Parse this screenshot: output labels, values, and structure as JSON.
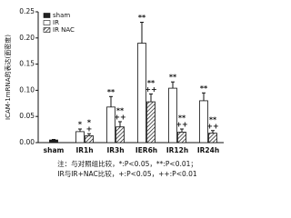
{
  "chart_data": {
    "type": "bar",
    "y_label": "ICAM-1mRNA的表达(面密度)",
    "categories": [
      "sham",
      "IR1h",
      "IR3h",
      "IER6h",
      "IR12h",
      "IR24h"
    ],
    "series": [
      {
        "name": "sham",
        "color": "#222222",
        "values": [
          0.005,
          null,
          null,
          null,
          null,
          null
        ],
        "errors": [
          0.001,
          null,
          null,
          null,
          null,
          null
        ],
        "sig": [
          null,
          null,
          null,
          null,
          null,
          null
        ]
      },
      {
        "name": "IR",
        "color": "#ffffff",
        "values": [
          null,
          0.021,
          0.068,
          0.19,
          0.104,
          0.08
        ],
        "errors": [
          null,
          0.005,
          0.02,
          0.04,
          0.012,
          0.015
        ],
        "sig": [
          null,
          [
            "*"
          ],
          [
            "**"
          ],
          [
            "**"
          ],
          [
            "**"
          ],
          [
            "**"
          ]
        ]
      },
      {
        "name": "IR NAC",
        "color": "#ffffff",
        "pattern": "hatch",
        "values": [
          null,
          0.013,
          0.03,
          0.078,
          0.02,
          0.018
        ],
        "errors": [
          null,
          0.004,
          0.01,
          0.015,
          0.006,
          0.005
        ],
        "sig": [
          null,
          [
            "*",
            "+"
          ],
          [
            "**",
            "++"
          ],
          [
            "**",
            "++"
          ],
          [
            "**",
            "++"
          ],
          [
            "**",
            "++"
          ]
        ]
      }
    ],
    "ylim": [
      0,
      0.25
    ],
    "yticks": [
      {
        "value": 0,
        "label": "0.00"
      },
      {
        "value": 0.05,
        "label": "0.05"
      },
      {
        "value": 0.1,
        "label": "0.10"
      },
      {
        "value": 0.15,
        "label": "0.15"
      },
      {
        "value": 0.2,
        "label": "0.20"
      },
      {
        "value": 0.25,
        "label": "0.25"
      }
    ],
    "legend": "top-left",
    "notes": [
      "注：与对照组比较，*:P<0.05，**:P<0.01；",
      "IR与IR+NAC比较，+:P<0.05，++:P<0.01"
    ]
  }
}
